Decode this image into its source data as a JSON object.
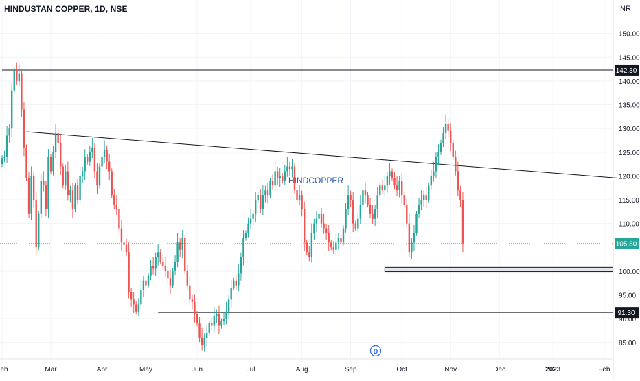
{
  "header": {
    "title": "HINDUSTAN COPPER, 1D, NSE",
    "currency": "INR"
  },
  "watermark": {
    "text": "HINDCOPPER"
  },
  "event_marker": {
    "label": "D"
  },
  "colors": {
    "up": "#26a69a",
    "down": "#ef5350",
    "price_line": "#26a69a",
    "label_bg": "#131722"
  },
  "chart_data": {
    "type": "candlestick",
    "title": "HINDUSTAN COPPER, 1D, NSE",
    "ylim": [
      81.5,
      155
    ],
    "y_ticks": [
      {
        "v": 150,
        "label": "150.00"
      },
      {
        "v": 145,
        "label": "145.00"
      },
      {
        "v": 140,
        "label": "140.00"
      },
      {
        "v": 135,
        "label": "135.00"
      },
      {
        "v": 130,
        "label": "130.00"
      },
      {
        "v": 125,
        "label": "125.00"
      },
      {
        "v": 120,
        "label": "120.00"
      },
      {
        "v": 115,
        "label": "115.00"
      },
      {
        "v": 110,
        "label": "110.00"
      },
      {
        "v": 100,
        "label": "100.00"
      },
      {
        "v": 95,
        "label": "95.00"
      },
      {
        "v": 90,
        "label": "90.00"
      },
      {
        "v": 85,
        "label": "85.00"
      }
    ],
    "x_ticks": [
      {
        "i": 0,
        "label": "Feb"
      },
      {
        "i": 20,
        "label": "Mar"
      },
      {
        "i": 41,
        "label": "Apr"
      },
      {
        "i": 59,
        "label": "May"
      },
      {
        "i": 80,
        "label": "Jun"
      },
      {
        "i": 102,
        "label": "Jul"
      },
      {
        "i": 123,
        "label": "Aug"
      },
      {
        "i": 143,
        "label": "Sep"
      },
      {
        "i": 164,
        "label": "Oct"
      },
      {
        "i": 184,
        "label": "Nov"
      },
      {
        "i": 204,
        "label": "Dec"
      },
      {
        "i": 226,
        "label": "2023"
      },
      {
        "i": 247,
        "label": "Feb"
      }
    ],
    "last_price": {
      "value": 105.8,
      "label": "105.80"
    },
    "levels": [
      {
        "value": 142.3,
        "label": "142.30",
        "from": 0
      },
      {
        "value": 91.3,
        "label": "91.30",
        "from": 64
      }
    ],
    "trendline": {
      "from": [
        10,
        129.3
      ],
      "to": [
        254,
        119.5
      ]
    },
    "zone": {
      "from": 157,
      "low": 99.9,
      "high": 100.8
    },
    "closes": [
      123.8,
      124,
      128.5,
      130,
      138,
      142.5,
      140,
      141.5,
      134,
      126,
      119.5,
      112,
      120,
      115,
      105,
      112,
      119,
      118,
      113,
      124,
      121,
      125,
      129,
      127,
      122,
      118,
      121,
      116,
      117,
      113,
      118,
      115,
      120,
      121,
      124,
      123,
      125,
      126,
      121,
      118,
      122,
      124,
      125.5,
      123,
      121,
      116,
      114,
      113,
      109,
      106,
      105.5,
      104,
      95.5,
      94,
      93,
      91.5,
      93,
      96,
      98,
      97,
      99,
      101,
      100.5,
      103,
      104,
      102,
      101,
      100,
      98.5,
      97,
      100,
      102,
      106,
      104.5,
      107,
      100,
      97,
      94,
      93.5,
      91,
      89,
      86,
      84.5,
      86,
      87,
      89,
      88.5,
      90.5,
      91,
      88.5,
      89.5,
      90,
      91.5,
      94,
      96.5,
      98,
      97,
      99.5,
      103,
      107,
      108,
      110,
      111,
      112,
      115,
      116,
      113,
      116,
      117,
      116,
      119,
      118,
      121,
      119.5,
      120,
      119,
      121,
      122,
      121.5,
      122,
      117,
      115,
      116,
      113,
      106,
      104,
      103,
      108,
      110,
      111,
      112,
      110,
      109,
      108,
      106,
      105,
      104.5,
      106,
      107,
      106,
      109,
      113,
      116,
      115,
      110,
      109,
      111,
      114,
      117,
      116,
      114,
      112,
      111,
      113,
      116,
      118,
      117,
      118,
      120,
      121,
      119.5,
      118,
      117,
      119,
      116,
      114,
      110,
      104,
      106,
      108,
      112,
      114,
      115,
      116,
      115,
      118,
      120,
      121,
      124,
      125,
      127,
      129,
      131,
      129.5,
      127,
      124,
      121,
      117,
      115,
      105.8
    ],
    "opens": [
      122.5,
      123.8,
      124,
      128.5,
      130,
      138,
      142.5,
      140,
      141.5,
      134,
      126,
      119.5,
      112,
      120,
      115,
      105,
      112,
      119,
      118,
      113,
      124,
      121,
      125,
      129,
      127,
      122,
      118,
      121,
      116,
      117,
      113,
      118,
      115,
      120,
      121,
      124,
      123,
      125,
      126,
      121,
      118,
      122,
      124,
      125.5,
      123,
      121,
      116,
      114,
      113,
      109,
      106,
      105.5,
      104,
      95.5,
      94,
      93,
      91.5,
      93,
      96,
      98,
      97,
      99,
      101,
      100.5,
      103,
      104,
      102,
      101,
      100,
      98.5,
      97,
      100,
      102,
      106,
      104.5,
      107,
      100,
      97,
      94,
      93.5,
      91,
      89,
      86,
      84.5,
      86,
      87,
      89,
      88.5,
      90.5,
      91,
      88.5,
      89.5,
      90,
      91.5,
      94,
      96.5,
      98,
      97,
      99.5,
      103,
      107,
      108,
      110,
      111,
      112,
      115,
      116,
      113,
      116,
      117,
      116,
      119,
      118,
      121,
      119.5,
      120,
      119,
      121,
      122,
      121.5,
      122,
      117,
      115,
      116,
      113,
      106,
      104,
      103,
      108,
      110,
      111,
      112,
      110,
      109,
      108,
      106,
      105,
      104.5,
      106,
      107,
      106,
      109,
      113,
      116,
      115,
      110,
      109,
      111,
      114,
      117,
      116,
      114,
      112,
      111,
      113,
      116,
      118,
      117,
      118,
      120,
      121,
      119.5,
      118,
      117,
      119,
      116,
      114,
      110,
      104,
      106,
      108,
      112,
      114,
      115,
      116,
      115,
      118,
      120,
      121,
      124,
      125,
      127,
      129,
      131,
      129.5,
      127,
      124,
      121,
      117,
      115
    ]
  }
}
